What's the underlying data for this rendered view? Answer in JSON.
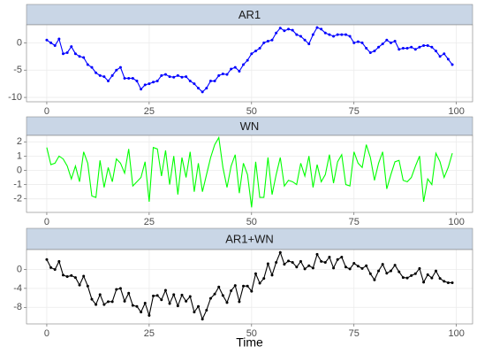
{
  "chart_data": [
    {
      "type": "line",
      "title": "AR1",
      "color": "#0000ff",
      "markers": true,
      "grid": true,
      "x": [
        0,
        1,
        2,
        3,
        4,
        5,
        6,
        7,
        8,
        9,
        10,
        11,
        12,
        13,
        14,
        15,
        16,
        17,
        18,
        19,
        20,
        21,
        22,
        23,
        24,
        25,
        26,
        27,
        28,
        29,
        30,
        31,
        32,
        33,
        34,
        35,
        36,
        37,
        38,
        39,
        40,
        41,
        42,
        43,
        44,
        45,
        46,
        47,
        48,
        49,
        50,
        51,
        52,
        53,
        54,
        55,
        56,
        57,
        58,
        59,
        60,
        61,
        62,
        63,
        64,
        65,
        66,
        67,
        68,
        69,
        70,
        71,
        72,
        73,
        74,
        75,
        76,
        77,
        78,
        79,
        80,
        81,
        82,
        83,
        84,
        85,
        86,
        87,
        88,
        89,
        90,
        91,
        92,
        93,
        94,
        95,
        96,
        97,
        98,
        99
      ],
      "values": [
        0.5,
        0,
        -0.5,
        0.7,
        -2,
        -1.8,
        -0.7,
        -2,
        -2.5,
        -2.7,
        -4,
        -4.5,
        -5.5,
        -6,
        -6.2,
        -7,
        -6,
        -5,
        -4.5,
        -6.5,
        -6.5,
        -6.5,
        -7,
        -8.5,
        -7.7,
        -7.5,
        -7.2,
        -7,
        -6,
        -5.8,
        -6.2,
        -6.3,
        -6,
        -6.3,
        -6.2,
        -7,
        -7.5,
        -8.3,
        -9,
        -8.3,
        -7,
        -7,
        -6,
        -5.7,
        -5.8,
        -4.8,
        -4.5,
        -5.2,
        -4,
        -3.2,
        -2,
        -1.5,
        -1,
        0,
        0.3,
        0.5,
        1.8,
        2.7,
        2.2,
        2.5,
        2.3,
        1.5,
        1.2,
        0.5,
        -0.2,
        1.5,
        2.8,
        2.5,
        1.8,
        1.5,
        1.2,
        1.5,
        1.5,
        1.5,
        1.2,
        0,
        0.2,
        0,
        -1,
        -1.8,
        -1.5,
        -0.8,
        -0.2,
        0.5,
        0,
        0.3,
        -1.2,
        -1,
        -1,
        -0.8,
        -1.2,
        -0.8,
        -0.5,
        -0.5,
        -0.8,
        -1.5,
        -2.5,
        -2,
        -3,
        -4
      ],
      "xlim": [
        -4.95,
        103.95
      ],
      "xticks": [
        0,
        25,
        50,
        75,
        100
      ],
      "ylim": [
        -10.8,
        3.3
      ],
      "yticks": [
        0,
        -5,
        -10
      ]
    },
    {
      "type": "line",
      "title": "WN",
      "color": "#00ff00",
      "markers": false,
      "grid": true,
      "x": [
        0,
        1,
        2,
        3,
        4,
        5,
        6,
        7,
        8,
        9,
        10,
        11,
        12,
        13,
        14,
        15,
        16,
        17,
        18,
        19,
        20,
        21,
        22,
        23,
        24,
        25,
        26,
        27,
        28,
        29,
        30,
        31,
        32,
        33,
        34,
        35,
        36,
        37,
        38,
        39,
        40,
        41,
        42,
        43,
        44,
        45,
        46,
        47,
        48,
        49,
        50,
        51,
        52,
        53,
        54,
        55,
        56,
        57,
        58,
        59,
        60,
        61,
        62,
        63,
        64,
        65,
        66,
        67,
        68,
        69,
        70,
        71,
        72,
        73,
        74,
        75,
        76,
        77,
        78,
        79,
        80,
        81,
        82,
        83,
        84,
        85,
        86,
        87,
        88,
        89,
        90,
        91,
        92,
        93,
        94,
        95,
        96,
        97,
        98,
        99
      ],
      "values": [
        1.6,
        0.4,
        0.5,
        1,
        0.8,
        0.3,
        -0.6,
        0.3,
        -0.8,
        1.3,
        0.5,
        -1.8,
        -1.9,
        0.7,
        -1.2,
        0.2,
        -0.8,
        0.8,
        0.5,
        -0.2,
        1.5,
        -1.1,
        -0.8,
        -0.5,
        0.6,
        -2.2,
        1.6,
        1.5,
        -0.4,
        1.4,
        -1,
        1,
        -1.7,
        0.9,
        -0.5,
        1.3,
        -1.5,
        0.5,
        -1.5,
        -0.3,
        0.9,
        1.8,
        2.3,
        0.2,
        -1.2,
        0.3,
        1.1,
        -1.6,
        0.5,
        -0.3,
        -2.6,
        0.6,
        -1.9,
        -1.9,
        0.9,
        -1.7,
        -0.3,
        0.9,
        -1.1,
        -0.7,
        -0.8,
        -1,
        0.5,
        -0.4,
        1,
        -1.2,
        0.4,
        -0.8,
        -0.3,
        1.1,
        -0.9,
        0.6,
        1.1,
        -1,
        -1.1,
        1.3,
        0.5,
        0.2,
        1.8,
        0.9,
        -0.7,
        0.5,
        1.3,
        -1.3,
        -0.3,
        0.6,
        0.7,
        -0.7,
        -0.8,
        -0.5,
        0.3,
        1,
        -2.2,
        -0.6,
        -1,
        1.2,
        0.6,
        -0.5,
        0.2,
        1.2
      ],
      "xlim": [
        -4.95,
        103.95
      ],
      "xticks": [
        0,
        25,
        50,
        75,
        100
      ],
      "ylim": [
        -2.95,
        2.45
      ],
      "yticks": [
        2,
        1,
        0,
        -1,
        -2
      ]
    },
    {
      "type": "line",
      "title": "AR1+WN",
      "xlabel": "Time",
      "color": "#000000",
      "markers": true,
      "grid": true,
      "x": [
        0,
        1,
        2,
        3,
        4,
        5,
        6,
        7,
        8,
        9,
        10,
        11,
        12,
        13,
        14,
        15,
        16,
        17,
        18,
        19,
        20,
        21,
        22,
        23,
        24,
        25,
        26,
        27,
        28,
        29,
        30,
        31,
        32,
        33,
        34,
        35,
        36,
        37,
        38,
        39,
        40,
        41,
        42,
        43,
        44,
        45,
        46,
        47,
        48,
        49,
        50,
        51,
        52,
        53,
        54,
        55,
        56,
        57,
        58,
        59,
        60,
        61,
        62,
        63,
        64,
        65,
        66,
        67,
        68,
        69,
        70,
        71,
        72,
        73,
        74,
        75,
        76,
        77,
        78,
        79,
        80,
        81,
        82,
        83,
        84,
        85,
        86,
        87,
        88,
        89,
        90,
        91,
        92,
        93,
        94,
        95,
        96,
        97,
        98,
        99
      ],
      "values": [
        2.1,
        0.4,
        0,
        1.7,
        -1.2,
        -1.5,
        -1.3,
        -1.7,
        -3.3,
        -1.4,
        -3.5,
        -6.3,
        -7.4,
        -5.3,
        -7.4,
        -6.8,
        -6.8,
        -4.2,
        -4,
        -6.7,
        -5,
        -7.6,
        -7.8,
        -9,
        -7.1,
        -9.7,
        -5.6,
        -5.5,
        -6.4,
        -4.4,
        -7.2,
        -5.3,
        -7.7,
        -5.4,
        -6.7,
        -5.7,
        -9,
        -7.8,
        -10.5,
        -8.6,
        -6.1,
        -5.2,
        -3.7,
        -5.5,
        -7,
        -4.5,
        -3.4,
        -6.8,
        -3.5,
        -3.5,
        -4.6,
        -0.9,
        -2.9,
        -1.9,
        1.2,
        -1.2,
        1.5,
        3.6,
        1.1,
        1.8,
        1.5,
        0.5,
        1.7,
        0.1,
        0.8,
        0.3,
        3.2,
        1.7,
        1.5,
        2.6,
        0.3,
        2.1,
        2.6,
        0.5,
        0.1,
        1.3,
        0.7,
        0.2,
        0.8,
        -0.9,
        -2.2,
        -0.3,
        1.1,
        -0.8,
        -0.3,
        0.9,
        -0.5,
        -1.7,
        -1.8,
        -1.3,
        -0.9,
        0.2,
        -2.7,
        -1.1,
        -1.8,
        -0.3,
        -1.9,
        -2.5,
        -2.8,
        -2.8
      ],
      "xlim": [
        -4.95,
        103.95
      ],
      "xticks": [
        0,
        25,
        50,
        75,
        100
      ],
      "ylim": [
        -11.5,
        4.2
      ],
      "yticks": [
        0,
        -4,
        -8
      ]
    }
  ]
}
